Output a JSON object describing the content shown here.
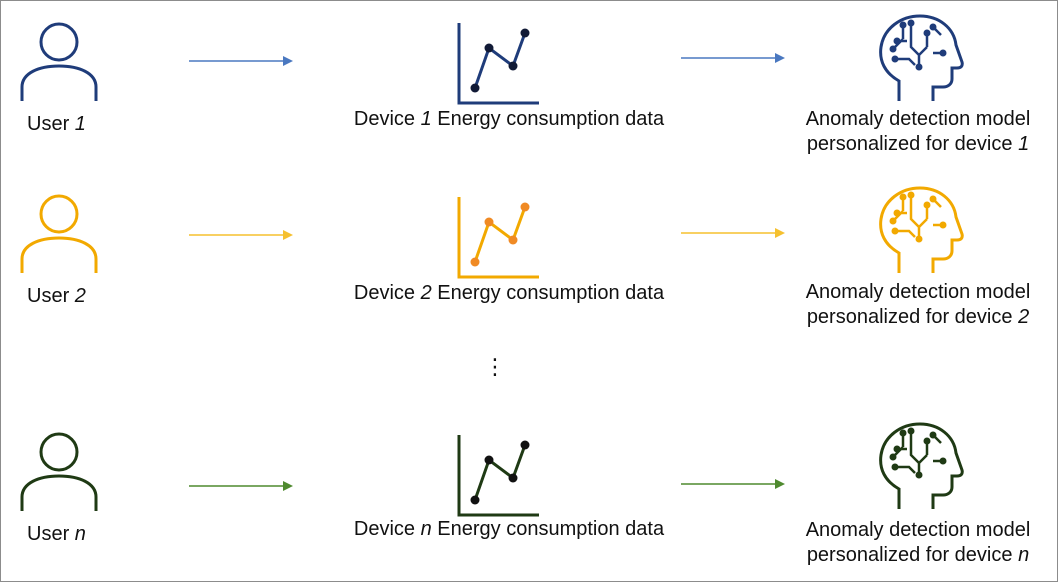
{
  "rows": [
    {
      "user_label": "User",
      "user_index": "1",
      "device_label_pre": "Device",
      "device_index": "1",
      "device_label_post": "Energy consumption data",
      "model_line1": "Anomaly detection model",
      "model_line2_pre": "personalized for device",
      "model_index": "1",
      "color": "#1f3c7a",
      "arrow_color": "#4a78c0"
    },
    {
      "user_label": "User",
      "user_index": "2",
      "device_label_pre": "Device",
      "device_index": "2",
      "device_label_post": "Energy consumption data",
      "model_line1": "Anomaly detection model",
      "model_line2_pre": "personalized for device",
      "model_index": "2",
      "color": "#f2a900",
      "arrow_color": "#f5c02f",
      "dot_color": "#f08a24"
    },
    {
      "user_label": "User",
      "user_index": "n",
      "device_label_pre": "Device",
      "device_index": "n",
      "device_label_post": "Energy consumption data",
      "model_line1": "Anomaly detection model",
      "model_line2_pre": "personalized for device",
      "model_index": "n",
      "color": "#1f3a14",
      "arrow_color": "#4f8a2f"
    }
  ],
  "ellipsis": "⋮"
}
